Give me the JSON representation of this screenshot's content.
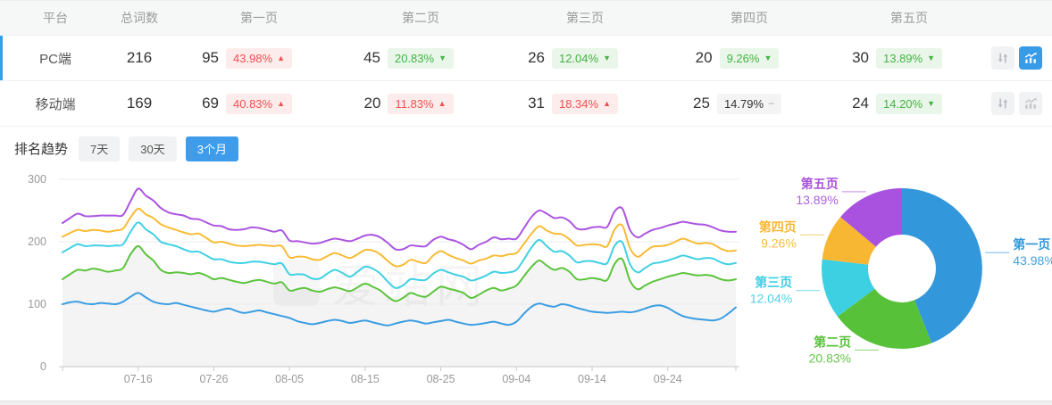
{
  "colors": {
    "accent_blue": "#2fa2e9",
    "active_button_blue": "#379be8",
    "tab_active_blue": "#3e9ceb",
    "badge_up_text": "#f25050",
    "badge_up_bg": "#fdecec",
    "badge_down_text": "#41b541",
    "badge_down_bg": "#e9f6e9",
    "badge_flat_bg": "#f4f4f4",
    "axis_text": "#999999",
    "grid_line": "#ebebeb",
    "area_fill": "#f4f4f5"
  },
  "icons": {
    "sort": "up-down-arrows-icon",
    "chart": "trend-chart-icon"
  },
  "table": {
    "columns": [
      "平台",
      "总词数",
      "第一页",
      "第二页",
      "第三页",
      "第四页",
      "第五页"
    ],
    "rows": [
      {
        "platform": "PC端",
        "selected": true,
        "total": "216",
        "chart_active": true,
        "pages": [
          {
            "count": "95",
            "pct": "43.98%",
            "dir": "up"
          },
          {
            "count": "45",
            "pct": "20.83%",
            "dir": "down"
          },
          {
            "count": "26",
            "pct": "12.04%",
            "dir": "down"
          },
          {
            "count": "20",
            "pct": "9.26%",
            "dir": "down"
          },
          {
            "count": "30",
            "pct": "13.89%",
            "dir": "down"
          }
        ]
      },
      {
        "platform": "移动端",
        "selected": false,
        "total": "169",
        "chart_active": false,
        "pages": [
          {
            "count": "69",
            "pct": "40.83%",
            "dir": "up"
          },
          {
            "count": "20",
            "pct": "11.83%",
            "dir": "up"
          },
          {
            "count": "31",
            "pct": "18.34%",
            "dir": "up"
          },
          {
            "count": "25",
            "pct": "14.79%",
            "dir": "flat"
          },
          {
            "count": "24",
            "pct": "14.20%",
            "dir": "down"
          }
        ]
      }
    ]
  },
  "trend": {
    "title": "排名趋势",
    "tabs": [
      {
        "label": "7天",
        "active": false
      },
      {
        "label": "30天",
        "active": false
      },
      {
        "label": "3个月",
        "active": true
      }
    ]
  },
  "watermark": "爱站网",
  "chart_data": [
    {
      "type": "line",
      "stacked": true,
      "title": "",
      "xlabel": "",
      "ylabel": "",
      "ylim": [
        0,
        300
      ],
      "y_tick_labels": [
        "0",
        "100",
        "200",
        "300"
      ],
      "y_tick_values": [
        0,
        100,
        200,
        300
      ],
      "num_points": 90,
      "x_tick_labels": [
        "07-16",
        "07-26",
        "08-05",
        "08-15",
        "08-25",
        "09-04",
        "09-14",
        "09-24"
      ],
      "x_tick_indices": [
        10,
        20,
        30,
        40,
        50,
        60,
        70,
        80
      ],
      "legend_position": "none",
      "grid": true,
      "series": [
        {
          "name": "第一页",
          "color": "#3a9ee2",
          "values": [
            100,
            103,
            104,
            101,
            100,
            102,
            101,
            100,
            104,
            112,
            118,
            111,
            104,
            101,
            100,
            102,
            99,
            96,
            93,
            90,
            88,
            91,
            93,
            89,
            86,
            88,
            90,
            87,
            84,
            81,
            78,
            73,
            70,
            68,
            70,
            73,
            75,
            73,
            70,
            72,
            74,
            71,
            68,
            66,
            69,
            72,
            74,
            72,
            69,
            71,
            73,
            75,
            72,
            69,
            67,
            68,
            70,
            72,
            69,
            67,
            72,
            85,
            96,
            101,
            98,
            96,
            100,
            98,
            94,
            91,
            88,
            87,
            86,
            87,
            88,
            87,
            89,
            93,
            97,
            98,
            94,
            87,
            81,
            78,
            76,
            75,
            74,
            77,
            85,
            95
          ]
        },
        {
          "name": "第二页",
          "color": "#5cc43c",
          "values": [
            40,
            45,
            51,
            53,
            57,
            53,
            51,
            54,
            54,
            68,
            75,
            69,
            66,
            54,
            50,
            49,
            51,
            52,
            57,
            56,
            52,
            51,
            46,
            47,
            48,
            49,
            49,
            49,
            49,
            54,
            44,
            51,
            56,
            54,
            50,
            51,
            52,
            51,
            51,
            55,
            59,
            57,
            54,
            46,
            36,
            38,
            44,
            42,
            43,
            49,
            55,
            50,
            50,
            49,
            43,
            47,
            52,
            54,
            53,
            58,
            58,
            60,
            64,
            69,
            64,
            59,
            58,
            54,
            46,
            49,
            54,
            53,
            53,
            78,
            84,
            51,
            35,
            37,
            39,
            42,
            50,
            60,
            69,
            70,
            70,
            72,
            71,
            63,
            53,
            45
          ]
        },
        {
          "name": "第三页",
          "color": "#3fd0e4",
          "values": [
            43,
            42,
            41,
            39,
            37,
            39,
            41,
            40,
            38,
            36,
            38,
            40,
            42,
            45,
            46,
            42,
            38,
            36,
            34,
            32,
            32,
            30,
            29,
            30,
            32,
            31,
            29,
            30,
            31,
            30,
            26,
            24,
            21,
            19,
            21,
            25,
            28,
            26,
            23,
            25,
            27,
            29,
            27,
            24,
            21,
            20,
            22,
            25,
            27,
            29,
            27,
            26,
            25,
            26,
            28,
            26,
            24,
            26,
            28,
            26,
            25,
            27,
            31,
            33,
            31,
            29,
            27,
            26,
            27,
            29,
            27,
            26,
            27,
            29,
            27,
            26,
            27,
            28,
            29,
            27,
            26,
            27,
            28,
            27,
            26,
            27,
            28,
            27,
            26,
            26
          ]
        },
        {
          "name": "第四页",
          "color": "#f8bb34",
          "values": [
            25,
            24,
            23,
            24,
            25,
            24,
            23,
            24,
            25,
            23,
            22,
            24,
            26,
            28,
            27,
            26,
            27,
            28,
            29,
            28,
            27,
            28,
            29,
            28,
            27,
            26,
            27,
            28,
            29,
            28,
            27,
            28,
            29,
            31,
            30,
            28,
            27,
            28,
            30,
            28,
            27,
            29,
            31,
            33,
            35,
            33,
            31,
            29,
            27,
            29,
            30,
            28,
            27,
            26,
            27,
            29,
            27,
            26,
            27,
            29,
            27,
            25,
            22,
            22,
            25,
            29,
            27,
            26,
            27,
            26,
            27,
            29,
            27,
            26,
            27,
            26,
            25,
            26,
            27,
            26,
            25,
            26,
            27,
            26,
            25,
            24,
            23,
            22,
            21,
            20
          ]
        },
        {
          "name": "第五页",
          "color": "#ac55e0",
          "values": [
            22,
            24,
            26,
            24,
            22,
            24,
            26,
            24,
            22,
            26,
            32,
            30,
            28,
            26,
            24,
            25,
            27,
            25,
            23,
            25,
            27,
            25,
            23,
            25,
            27,
            29,
            27,
            25,
            23,
            25,
            27,
            25,
            23,
            25,
            27,
            25,
            23,
            25,
            27,
            25,
            23,
            25,
            27,
            29,
            27,
            25,
            23,
            25,
            27,
            25,
            23,
            25,
            27,
            25,
            23,
            25,
            27,
            29,
            27,
            25,
            23,
            25,
            27,
            25,
            27,
            25,
            27,
            29,
            27,
            25,
            27,
            29,
            31,
            29,
            27,
            29,
            31,
            29,
            27,
            29,
            31,
            29,
            27,
            29,
            31,
            29,
            27,
            29,
            31,
            30
          ]
        }
      ]
    },
    {
      "type": "pie",
      "donut": true,
      "title": "",
      "legend_position": "none",
      "slices": [
        {
          "label": "第一页",
          "value": 43.98,
          "color": "#3398db"
        },
        {
          "label": "第二页",
          "value": 20.83,
          "color": "#58c13a"
        },
        {
          "label": "第三页",
          "value": 12.04,
          "color": "#3dd0e2"
        },
        {
          "label": "第四页",
          "value": 9.26,
          "color": "#f8b733"
        },
        {
          "label": "第五页",
          "value": 13.89,
          "color": "#a852df"
        }
      ]
    }
  ]
}
